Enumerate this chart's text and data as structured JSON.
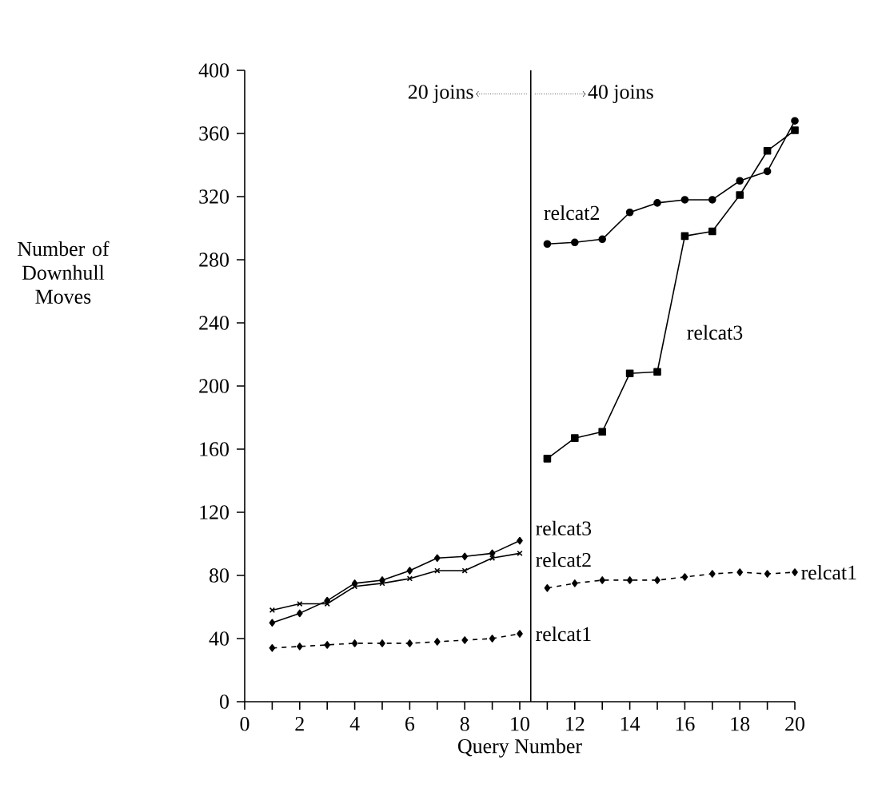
{
  "chart_data": {
    "type": "line",
    "xlabel": "Query Number",
    "ylabel": "Number of Downhull Moves",
    "xlim": [
      0,
      20
    ],
    "ylim": [
      0,
      400
    ],
    "xticks": [
      0,
      2,
      4,
      6,
      8,
      10,
      12,
      14,
      16,
      18,
      20
    ],
    "yticks": [
      0,
      40,
      80,
      120,
      160,
      200,
      240,
      280,
      320,
      360,
      400
    ],
    "grid": false,
    "ref_lines": [
      {
        "axis": "x",
        "value": 10.4,
        "color": "#000000",
        "line_style": "solid"
      }
    ],
    "annotations": [
      "20 joins",
      "40 joins"
    ],
    "series": [
      {
        "name": "relcat1",
        "color": "#000000",
        "marker": "diamond",
        "line_style": "dashed",
        "x": [
          1,
          2,
          3,
          4,
          5,
          6,
          7,
          8,
          9,
          10
        ],
        "values": [
          34,
          35,
          36,
          37,
          37,
          37,
          38,
          39,
          40,
          43
        ]
      },
      {
        "name": "relcat2",
        "color": "#000000",
        "marker": "cross",
        "line_style": "solid",
        "x": [
          1,
          2,
          3,
          4,
          5,
          6,
          7,
          8,
          9,
          10
        ],
        "values": [
          58,
          62,
          62,
          73,
          75,
          78,
          83,
          83,
          91,
          94
        ]
      },
      {
        "name": "relcat3",
        "color": "#000000",
        "marker": "diamond",
        "line_style": "solid",
        "x": [
          1,
          2,
          3,
          4,
          5,
          6,
          7,
          8,
          9,
          10
        ],
        "values": [
          50,
          56,
          64,
          75,
          77,
          83,
          91,
          92,
          94,
          102
        ]
      },
      {
        "name": "relcat1",
        "color": "#000000",
        "marker": "diamond",
        "line_style": "dashed",
        "x": [
          11,
          12,
          13,
          14,
          15,
          16,
          17,
          18,
          19,
          20
        ],
        "values": [
          72,
          75,
          77,
          77,
          77,
          79,
          81,
          82,
          81,
          82
        ]
      },
      {
        "name": "relcat2",
        "color": "#000000",
        "marker": "circle",
        "line_style": "solid",
        "x": [
          11,
          12,
          13,
          14,
          15,
          16,
          17,
          18,
          19,
          20
        ],
        "values": [
          290,
          291,
          293,
          310,
          316,
          318,
          318,
          330,
          336,
          368
        ]
      },
      {
        "name": "relcat3",
        "color": "#000000",
        "marker": "square",
        "line_style": "solid",
        "x": [
          11,
          12,
          13,
          14,
          15,
          16,
          17,
          18,
          19,
          20
        ],
        "values": [
          154,
          167,
          171,
          208,
          209,
          295,
          298,
          321,
          349,
          362
        ]
      }
    ]
  }
}
